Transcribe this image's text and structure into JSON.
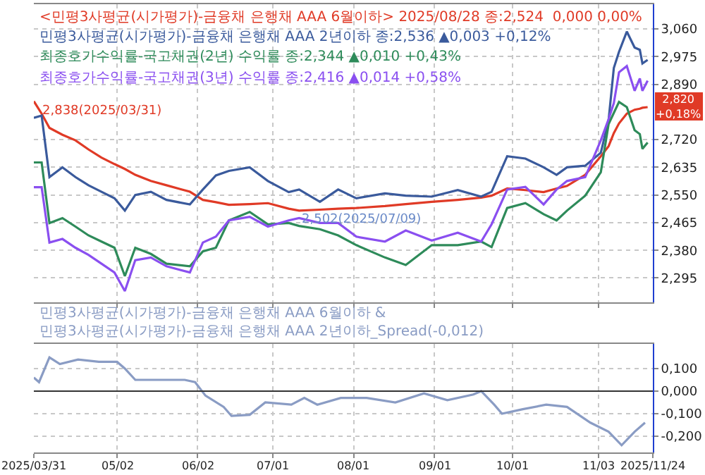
{
  "chart_data": [
    {
      "type": "line",
      "legend": false,
      "grid": true,
      "tick_labels": "y",
      "line_style": "solid",
      "marker": "none",
      "x": [
        "2025-03-31",
        "2025-04-03",
        "2025-04-06",
        "2025-04-11",
        "2025-04-16",
        "2025-04-21",
        "2025-04-26",
        "2025-05-01",
        "2025-05-05",
        "2025-05-09",
        "2025-05-15",
        "2025-05-21",
        "2025-05-30",
        "2025-06-04",
        "2025-06-09",
        "2025-06-14",
        "2025-06-22",
        "2025-06-29",
        "2025-07-07",
        "2025-07-11",
        "2025-07-19",
        "2025-07-26",
        "2025-08-02",
        "2025-08-13",
        "2025-08-21",
        "2025-08-31",
        "2025-09-10",
        "2025-09-19",
        "2025-09-23",
        "2025-09-29",
        "2025-10-06",
        "2025-10-13",
        "2025-10-18",
        "2025-10-22",
        "2025-10-29",
        "2025-11-04",
        "2025-11-07",
        "2025-11-09",
        "2025-11-11",
        "2025-11-14",
        "2025-11-17",
        "2025-11-19",
        "2025-11-20",
        "2025-11-22"
      ],
      "series": [
        {
          "name": "<민평3사평균(시가평가)-금융채 은행채 AAA 6월이하> 2025/08/28 종:2,524  0,000 0,00%",
          "color": "#e03a26",
          "values": [
            2.838,
            2.8,
            2.756,
            2.735,
            2.718,
            2.69,
            2.665,
            2.645,
            2.63,
            2.612,
            2.593,
            2.58,
            2.56,
            2.535,
            2.528,
            2.52,
            2.522,
            2.525,
            2.508,
            2.502,
            2.505,
            2.508,
            2.51,
            2.516,
            2.522,
            2.529,
            2.535,
            2.542,
            2.548,
            2.57,
            2.565,
            2.559,
            2.57,
            2.578,
            2.612,
            2.669,
            2.7,
            2.74,
            2.77,
            2.8,
            2.812,
            2.815,
            2.818,
            2.82
          ]
        },
        {
          "name": "민평3사평균(시가평가)-금융채 은행채 AAA 2년이하 종:2,536 ▲0,003 +0,12%",
          "color": "#3a5a9c",
          "values": [
            2.787,
            2.794,
            2.605,
            2.635,
            2.605,
            2.58,
            2.56,
            2.54,
            2.502,
            2.55,
            2.56,
            2.535,
            2.521,
            2.567,
            2.61,
            2.624,
            2.635,
            2.593,
            2.559,
            2.567,
            2.529,
            2.567,
            2.54,
            2.555,
            2.548,
            2.545,
            2.565,
            2.545,
            2.56,
            2.669,
            2.662,
            2.635,
            2.612,
            2.635,
            2.64,
            2.68,
            2.78,
            2.94,
            2.99,
            3.052,
            3.003,
            2.996,
            2.954,
            2.965
          ]
        },
        {
          "name": "최종호가수익률-국고채권(2년) 수익률 종:2,344 ▲0,010 +0,43%",
          "color": "#2e8b5a",
          "values": [
            2.65,
            2.65,
            2.464,
            2.479,
            2.453,
            2.426,
            2.407,
            2.388,
            2.301,
            2.388,
            2.369,
            2.339,
            2.331,
            2.377,
            2.388,
            2.472,
            2.498,
            2.46,
            2.464,
            2.455,
            2.445,
            2.426,
            2.396,
            2.358,
            2.335,
            2.396,
            2.396,
            2.407,
            2.39,
            2.51,
            2.525,
            2.491,
            2.472,
            2.502,
            2.548,
            2.62,
            2.768,
            2.802,
            2.836,
            2.82,
            2.749,
            2.737,
            2.692,
            2.711
          ]
        },
        {
          "name": "최종호가수익률-국고채권(3년) 수익률 종:2,416 ▲0,014 +0,58%",
          "color": "#8a4ff0",
          "values": [
            2.574,
            2.574,
            2.404,
            2.415,
            2.388,
            2.366,
            2.339,
            2.312,
            2.255,
            2.35,
            2.358,
            2.331,
            2.312,
            2.404,
            2.422,
            2.472,
            2.483,
            2.453,
            2.472,
            2.479,
            2.464,
            2.464,
            2.422,
            2.407,
            2.441,
            2.41,
            2.434,
            2.407,
            2.46,
            2.567,
            2.575,
            2.521,
            2.567,
            2.593,
            2.605,
            2.718,
            2.783,
            2.832,
            2.927,
            2.946,
            2.87,
            2.908,
            2.87,
            2.901
          ]
        }
      ],
      "xlim": [
        "2025-03-31",
        "2025-11-24"
      ],
      "xticks": [
        {
          "value": "2025-05-02",
          "label": null
        },
        {
          "value": "2025-06-02",
          "label": null
        },
        {
          "value": "2025-07-01",
          "label": null
        },
        {
          "value": "2025-08-01",
          "label": null
        },
        {
          "value": "2025-09-01",
          "label": null
        },
        {
          "value": "2025-10-01",
          "label": null
        },
        {
          "value": "2025-11-03",
          "label": null
        }
      ],
      "ylim": [
        2.221,
        3.136
      ],
      "yticks": [
        {
          "value": 2.295,
          "label": "2,295"
        },
        {
          "value": 2.38,
          "label": "2,380"
        },
        {
          "value": 2.465,
          "label": "2,465"
        },
        {
          "value": 2.55,
          "label": "2,550"
        },
        {
          "value": 2.635,
          "label": "2,635"
        },
        {
          "value": 2.72,
          "label": "2,720"
        },
        {
          "value": 2.89,
          "label": "2,890"
        },
        {
          "value": 2.975,
          "label": "2,975"
        },
        {
          "value": 3.06,
          "label": "3,060"
        }
      ],
      "annotations": [
        {
          "text": "2,838(2025/03/31)",
          "x": "2025-03-31",
          "y": 2.838
        },
        {
          "text": "2,502(2025/07/09)",
          "x": "2025-07-09",
          "y": 2.502
        },
        {
          "text": "2,820\n+0,18%",
          "x": "2025-11-24",
          "y": 2.82
        }
      ]
    },
    {
      "type": "line",
      "legend": false,
      "grid": true,
      "line_style": "solid",
      "marker": "none",
      "x": [
        "2025-03-31",
        "2025-04-02",
        "2025-04-06",
        "2025-04-10",
        "2025-04-17",
        "2025-04-25",
        "2025-05-02",
        "2025-05-05",
        "2025-05-09",
        "2025-05-19",
        "2025-05-28",
        "2025-06-01",
        "2025-06-05",
        "2025-06-12",
        "2025-06-15",
        "2025-06-22",
        "2025-06-28",
        "2025-07-08",
        "2025-07-13",
        "2025-07-18",
        "2025-07-27",
        "2025-08-06",
        "2025-08-17",
        "2025-08-28",
        "2025-09-06",
        "2025-09-16",
        "2025-09-19",
        "2025-09-24",
        "2025-09-27",
        "2025-10-05",
        "2025-10-14",
        "2025-10-22",
        "2025-10-31",
        "2025-11-07",
        "2025-11-12",
        "2025-11-17",
        "2025-11-21"
      ],
      "series": [
        {
          "name": "민평3사평균(시가평가)-금융채 은행채 AAA 6월이하 & 민평3사평균(시가평가)-금융채 은행채 AAA 2년이하_Spread(-0,012)",
          "color": "#8a9cc4",
          "values": [
            0.06,
            0.04,
            0.15,
            0.12,
            0.14,
            0.13,
            0.13,
            0.1,
            0.05,
            0.05,
            0.05,
            0.04,
            -0.02,
            -0.07,
            -0.11,
            -0.105,
            -0.05,
            -0.06,
            -0.03,
            -0.06,
            -0.03,
            -0.03,
            -0.05,
            -0.01,
            -0.04,
            -0.015,
            0.0,
            -0.06,
            -0.1,
            -0.08,
            -0.06,
            -0.07,
            -0.14,
            -0.18,
            -0.24,
            -0.18,
            -0.14
          ]
        }
      ],
      "xlim": [
        "2025-03-31",
        "2025-11-24"
      ],
      "xticks": [
        {
          "value": "2025-03-31",
          "label": "2025/03/31"
        },
        {
          "value": "2025-05-02",
          "label": "05/02"
        },
        {
          "value": "2025-06-02",
          "label": "06/02"
        },
        {
          "value": "2025-07-01",
          "label": "07/01"
        },
        {
          "value": "2025-08-01",
          "label": "08/01"
        },
        {
          "value": "2025-09-01",
          "label": "09/01"
        },
        {
          "value": "2025-10-01",
          "label": "10/01"
        },
        {
          "value": "2025-11-03",
          "label": "11/03"
        },
        {
          "value": "2025-11-24",
          "label": "2025/11/24"
        }
      ],
      "ylim": [
        -0.272,
        0.208
      ],
      "yticks": [
        {
          "value": -0.2,
          "label": "-0,200"
        },
        {
          "value": -0.1,
          "label": "-0,100"
        },
        {
          "value": 0.0,
          "label": "0,000"
        },
        {
          "value": 0.1,
          "label": "0,100"
        }
      ],
      "ref_lines": [
        {
          "axis": "y",
          "value": 0.0,
          "color": "#333333"
        }
      ]
    }
  ]
}
